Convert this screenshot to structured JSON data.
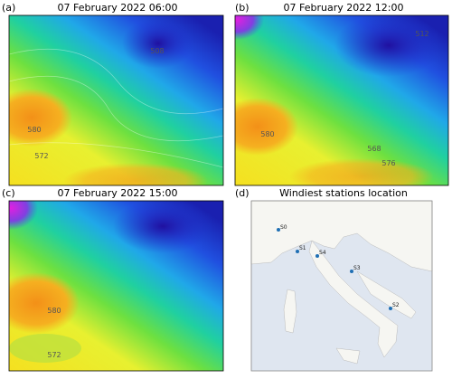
{
  "panels": [
    {
      "label": "(a)",
      "title": "07 February 2022 06:00",
      "contour_labels": [
        "508",
        "580",
        "572"
      ]
    },
    {
      "label": "(b)",
      "title": "07 February 2022 12:00",
      "contour_labels": [
        "512",
        "580",
        "568",
        "576"
      ]
    },
    {
      "label": "(c)",
      "title": "07 February 2022 15:00",
      "contour_labels": [
        "580",
        "572"
      ]
    },
    {
      "label": "(d)",
      "title": "Windiest stations location",
      "stations": [
        "S0",
        "S1",
        "S2",
        "S3",
        "S4"
      ]
    }
  ]
}
